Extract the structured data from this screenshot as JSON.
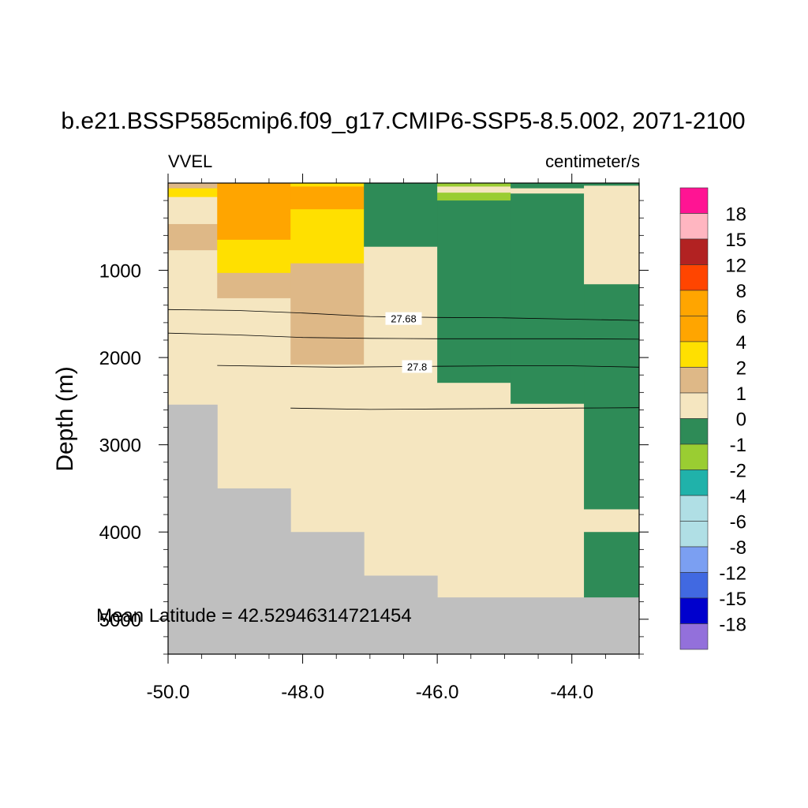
{
  "chart_data": {
    "type": "heatmap",
    "title": "b.e21.BSSP585cmip6.f09_g17.CMIP6-SSP5-8.5.002, 2071-2100",
    "left_label": "VVEL",
    "right_label": "centimeter/s",
    "ylabel": "Depth (m)",
    "xlabel": "",
    "annotation": "Mean Latitude = 42.52946314721454",
    "xlim": [
      -50.0,
      -43.0
    ],
    "ylim_depth": [
      0,
      5400
    ],
    "x_ticks": [
      "-50.0",
      "-48.0",
      "-46.0",
      "-44.0"
    ],
    "x_tick_values": [
      -50.0,
      -48.0,
      -46.0,
      -44.0
    ],
    "y_ticks": [
      "1000",
      "2000",
      "3000",
      "4000",
      "5000"
    ],
    "y_tick_values": [
      1000,
      2000,
      3000,
      4000,
      5000
    ],
    "colorbar": {
      "labels": [
        "18",
        "15",
        "12",
        "8",
        "6",
        "4",
        "2",
        "1",
        "0",
        "-1",
        "-2",
        "-4",
        "-6",
        "-8",
        "-12",
        "-15",
        "-18"
      ],
      "colors": [
        "#ff1493",
        "#ffb6c1",
        "#b22222",
        "#ff4500",
        "#ffa500",
        "#ffa500",
        "#ffe000",
        "#deb887",
        "#f5e6c0",
        "#2e8b57",
        "#9acd32",
        "#20b2aa",
        "#b0dfe5",
        "#b0dfe5",
        "#7b9ff2",
        "#4169e1",
        "#0000cd",
        "#9370db"
      ]
    },
    "land_color": "#bfbfbf",
    "cells": [
      {
        "x0": -50.0,
        "x1": -49.27,
        "d0": 0,
        "d1": 60,
        "v": "1"
      },
      {
        "x0": -50.0,
        "x1": -49.27,
        "d0": 60,
        "d1": 160,
        "v": "2"
      },
      {
        "x0": -50.0,
        "x1": -49.27,
        "d0": 160,
        "d1": 470,
        "v": "0"
      },
      {
        "x0": -50.0,
        "x1": -49.27,
        "d0": 470,
        "d1": 770,
        "v": "1"
      },
      {
        "x0": -50.0,
        "x1": -49.27,
        "d0": 770,
        "d1": 2540,
        "v": "0"
      },
      {
        "x0": -49.27,
        "x1": -48.18,
        "d0": 0,
        "d1": 650,
        "v": "4"
      },
      {
        "x0": -49.27,
        "x1": -48.18,
        "d0": 650,
        "d1": 1030,
        "v": "2"
      },
      {
        "x0": -49.27,
        "x1": -48.18,
        "d0": 1030,
        "d1": 1320,
        "v": "1"
      },
      {
        "x0": -49.27,
        "x1": -48.18,
        "d0": 1320,
        "d1": 3500,
        "v": "0"
      },
      {
        "x0": -48.18,
        "x1": -47.09,
        "d0": 0,
        "d1": 40,
        "v": "2"
      },
      {
        "x0": -48.18,
        "x1": -47.09,
        "d0": 40,
        "d1": 300,
        "v": "4"
      },
      {
        "x0": -48.18,
        "x1": -47.09,
        "d0": 300,
        "d1": 920,
        "v": "2"
      },
      {
        "x0": -48.18,
        "x1": -47.09,
        "d0": 920,
        "d1": 2080,
        "v": "1"
      },
      {
        "x0": -48.18,
        "x1": -47.09,
        "d0": 2080,
        "d1": 4000,
        "v": "0"
      },
      {
        "x0": -47.09,
        "x1": -46.0,
        "d0": 0,
        "d1": 730,
        "v": "-1"
      },
      {
        "x0": -47.09,
        "x1": -46.0,
        "d0": 730,
        "d1": 4500,
        "v": "0"
      },
      {
        "x0": -46.0,
        "x1": -44.91,
        "d0": 0,
        "d1": 40,
        "v": "-2"
      },
      {
        "x0": -46.0,
        "x1": -44.91,
        "d0": 40,
        "d1": 110,
        "v": "0"
      },
      {
        "x0": -46.0,
        "x1": -44.91,
        "d0": 110,
        "d1": 200,
        "v": "-2"
      },
      {
        "x0": -46.0,
        "x1": -44.91,
        "d0": 200,
        "d1": 2290,
        "v": "-1"
      },
      {
        "x0": -46.0,
        "x1": -44.91,
        "d0": 2290,
        "d1": 4750,
        "v": "0"
      },
      {
        "x0": -44.91,
        "x1": -43.82,
        "d0": 0,
        "d1": 60,
        "v": "-1"
      },
      {
        "x0": -44.91,
        "x1": -43.82,
        "d0": 60,
        "d1": 120,
        "v": "0"
      },
      {
        "x0": -44.91,
        "x1": -43.82,
        "d0": 120,
        "d1": 2530,
        "v": "-1"
      },
      {
        "x0": -44.91,
        "x1": -43.82,
        "d0": 2530,
        "d1": 4750,
        "v": "0"
      },
      {
        "x0": -43.82,
        "x1": -43.0,
        "d0": 0,
        "d1": 30,
        "v": "-1"
      },
      {
        "x0": -43.82,
        "x1": -43.0,
        "d0": 30,
        "d1": 1160,
        "v": "0"
      },
      {
        "x0": -43.82,
        "x1": -43.0,
        "d0": 1160,
        "d1": 3740,
        "v": "-1"
      },
      {
        "x0": -43.82,
        "x1": -43.0,
        "d0": 3740,
        "d1": 4000,
        "v": "0"
      },
      {
        "x0": -43.82,
        "x1": -43.0,
        "d0": 4000,
        "d1": 4750,
        "v": "-1"
      }
    ],
    "land": [
      {
        "x0": -50.0,
        "x1": -49.27,
        "d0": 2540,
        "d1": 5400
      },
      {
        "x0": -49.27,
        "x1": -48.18,
        "d0": 3500,
        "d1": 5400
      },
      {
        "x0": -48.18,
        "x1": -47.09,
        "d0": 4000,
        "d1": 5400
      },
      {
        "x0": -47.09,
        "x1": -46.0,
        "d0": 4500,
        "d1": 5400
      },
      {
        "x0": -46.0,
        "x1": -43.0,
        "d0": 4750,
        "d1": 5400
      }
    ],
    "contours": [
      {
        "label": "",
        "points": [
          [
            -50.0,
            1450
          ],
          [
            -49.0,
            1460
          ],
          [
            -48.0,
            1490
          ],
          [
            -47.0,
            1530
          ],
          [
            -46.0,
            1540
          ],
          [
            -45.0,
            1545
          ],
          [
            -44.0,
            1560
          ],
          [
            -43.0,
            1575
          ]
        ]
      },
      {
        "label": "27.68",
        "label_at": [
          -46.5,
          1580
        ],
        "points": []
      },
      {
        "label": "",
        "points": [
          [
            -50.0,
            1720
          ],
          [
            -49.0,
            1740
          ],
          [
            -48.0,
            1770
          ],
          [
            -47.0,
            1780
          ],
          [
            -46.0,
            1785
          ],
          [
            -45.0,
            1785
          ],
          [
            -44.0,
            1785
          ],
          [
            -43.0,
            1790
          ]
        ]
      },
      {
        "label": "27.8",
        "label_at": [
          -46.3,
          2130
        ],
        "points": [
          [
            -49.27,
            2090
          ],
          [
            -48.5,
            2100
          ],
          [
            -47.5,
            2110
          ],
          [
            -46.0,
            2100
          ],
          [
            -45.0,
            2095
          ],
          [
            -44.0,
            2095
          ],
          [
            -43.0,
            2110
          ]
        ]
      },
      {
        "label": "",
        "points": [
          [
            -48.18,
            2580
          ],
          [
            -47.0,
            2595
          ],
          [
            -46.0,
            2590
          ],
          [
            -45.0,
            2585
          ],
          [
            -44.0,
            2580
          ],
          [
            -43.0,
            2575
          ]
        ]
      }
    ]
  }
}
